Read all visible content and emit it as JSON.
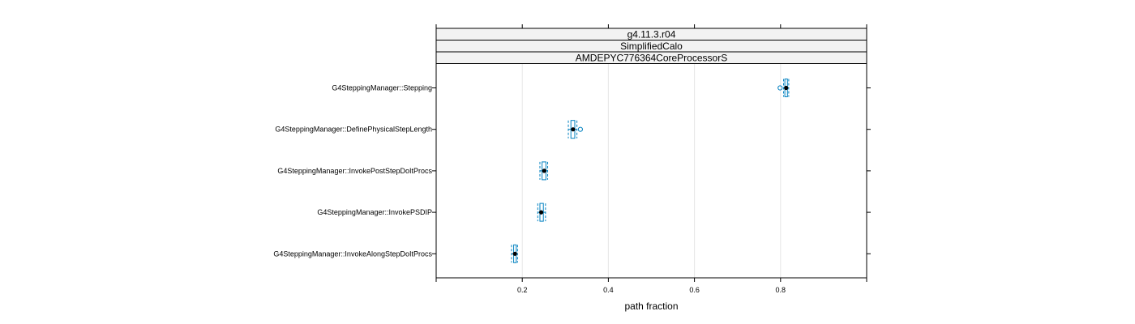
{
  "chart_data": {
    "type": "box",
    "panel_strips": [
      "g4.11.3.r04",
      "SimplifiedCalo",
      "AMDEPYC776364CoreProcessorS"
    ],
    "xlabel": "path fraction",
    "ylabel": "",
    "xlim": [
      0.0,
      1.0
    ],
    "xticks": [
      0.2,
      0.4,
      0.6,
      0.8
    ],
    "xtick_labels": [
      "0.2",
      "0.4",
      "0.6",
      "0.8"
    ],
    "grid": "vertical",
    "colors": {
      "box": "#0080c0",
      "median": "#000000",
      "strip_fill": "#f2f2f2",
      "grid": "#e6e6e6"
    },
    "categories": [
      "G4SteppingManager::Stepping",
      "G4SteppingManager::DefinePhysicalStepLength",
      "G4SteppingManager::InvokePostStepDoItProcs",
      "G4SteppingManager::InvokePSDIP",
      "G4SteppingManager::InvokeAlongStepDoItProcs"
    ],
    "boxes": [
      {
        "min": 0.807,
        "q1": 0.81,
        "median": 0.813,
        "q3": 0.816,
        "max": 0.819,
        "outliers": [
          0.799
        ]
      },
      {
        "min": 0.307,
        "q1": 0.313,
        "median": 0.318,
        "q3": 0.322,
        "max": 0.327,
        "outliers": [
          0.335
        ]
      },
      {
        "min": 0.241,
        "q1": 0.246,
        "median": 0.251,
        "q3": 0.255,
        "max": 0.259,
        "outliers": []
      },
      {
        "min": 0.236,
        "q1": 0.241,
        "median": 0.244,
        "q3": 0.249,
        "max": 0.254,
        "outliers": []
      },
      {
        "min": 0.175,
        "q1": 0.18,
        "median": 0.183,
        "q3": 0.186,
        "max": 0.189,
        "outliers": []
      }
    ]
  }
}
